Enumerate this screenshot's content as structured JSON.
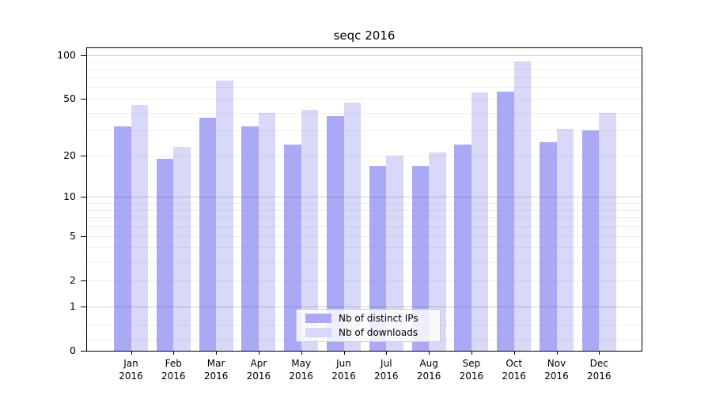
{
  "title": "seqc 2016",
  "chart_data": {
    "type": "bar",
    "title": "seqc 2016",
    "categories": [
      "Jan",
      "Feb",
      "Mar",
      "Apr",
      "May",
      "Jun",
      "Jul",
      "Aug",
      "Sep",
      "Oct",
      "Nov",
      "Dec"
    ],
    "year_label": "2016",
    "series": [
      {
        "name": "Nb of distinct IPs",
        "color": "#a9a9f5",
        "values": [
          32,
          19,
          37,
          32,
          24,
          38,
          17,
          17,
          24,
          56,
          25,
          30
        ]
      },
      {
        "name": "Nb of downloads",
        "color": "#d8d8f8",
        "values": [
          45,
          23,
          67,
          40,
          42,
          47,
          20,
          21,
          55,
          90,
          31,
          40
        ]
      }
    ],
    "xlabel": "",
    "ylabel": "",
    "y_scale": "log10(value+1)",
    "y_ticks": [
      100,
      50,
      20,
      10,
      5,
      2,
      1,
      0
    ],
    "grid_minor": [
      0.2,
      0.5,
      2,
      3,
      4,
      5,
      6,
      7,
      8,
      9,
      20,
      30,
      40,
      50,
      60,
      70,
      80,
      90
    ],
    "grid_major": [
      1,
      10,
      100
    ],
    "ylim": [
      0,
      111
    ],
    "grid": "on",
    "legend_position": "lower center"
  }
}
